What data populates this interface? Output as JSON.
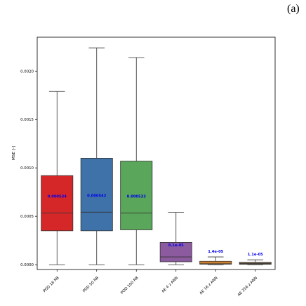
{
  "panel_label": "(a)",
  "chart_data": {
    "type": "box",
    "ylabel": "MSE [-]",
    "xlabel": "",
    "ylim": [
      -5e-05,
      0.00235
    ],
    "yticks": [
      0.0,
      0.0005,
      0.001,
      0.0015,
      0.002
    ],
    "ytick_labels": [
      "0.0000",
      "0.0005",
      "0.0010",
      "0.0015",
      "0.0020"
    ],
    "grid": false,
    "categories": [
      "POD 16 RB",
      "POD 50 RB",
      "POD 100 RB",
      "AE 4 z ANN",
      "AE 16 z ANN",
      "AE 256 z ANN"
    ],
    "boxes": [
      {
        "label": "POD 16 RB",
        "whislo": 0.0,
        "q1": 0.00035,
        "med": 0.000534,
        "q3": 0.00092,
        "whishi": 0.00179,
        "mean_label": "0.000534",
        "color": "#d62728"
      },
      {
        "label": "POD 50 RB",
        "whislo": 0.0,
        "q1": 0.00035,
        "med": 0.000542,
        "q3": 0.0011,
        "whishi": 0.00224,
        "mean_label": "0.000542",
        "color": "#3e72a8"
      },
      {
        "label": "POD 100 RB",
        "whislo": 0.0,
        "q1": 0.00036,
        "med": 0.000533,
        "q3": 0.00107,
        "whishi": 0.00214,
        "mean_label": "0.000533",
        "color": "#5aa65a"
      },
      {
        "label": "AE 4 z ANN",
        "whislo": 0.0,
        "q1": 3e-05,
        "med": 8e-05,
        "q3": 0.00023,
        "whishi": 0.00054,
        "mean_label": "8.1e-05",
        "color": "#8c5a9e"
      },
      {
        "label": "AE 16 z ANN",
        "whislo": 0.0,
        "q1": 5e-06,
        "med": 1.4e-05,
        "q3": 3.5e-05,
        "whishi": 8e-05,
        "mean_label": "1.4e-05",
        "color": "#e08a2c"
      },
      {
        "label": "AE 256 z ANN",
        "whislo": 0.0,
        "q1": 4e-06,
        "med": 1.1e-05,
        "q3": 2.5e-05,
        "whishi": 5e-05,
        "mean_label": "1.1e-05",
        "color": "#8a7055"
      }
    ]
  }
}
